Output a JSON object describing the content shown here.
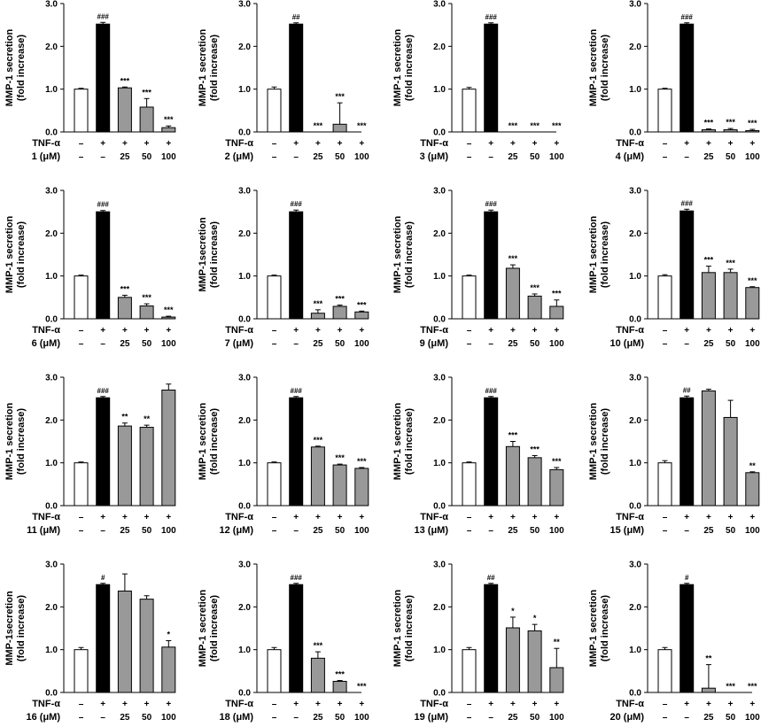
{
  "chart_data": {
    "type": "bar",
    "y_ticks": [
      "0.0",
      "1.0",
      "2.0",
      "3.0"
    ],
    "ylim": [
      0,
      3
    ],
    "row_labels": [
      "TNF-α"
    ],
    "tnf_row": [
      "–",
      "+",
      "+",
      "+",
      "+"
    ],
    "conc_row": [
      "–",
      "–",
      "25",
      "50",
      "100"
    ],
    "bar_colors": [
      "#ffffff",
      "#000000",
      "#999999",
      "#999999",
      "#999999"
    ],
    "panels": [
      {
        "compound_label": "1 (μM)",
        "ylabel": [
          "MMP-1 secretion",
          "(fold increase)"
        ],
        "values": [
          1.0,
          2.52,
          1.03,
          0.58,
          0.1
        ],
        "errors": [
          0.02,
          0.04,
          0.02,
          0.2,
          0.04
        ],
        "annotations": [
          "",
          "###",
          "***",
          "***",
          "***"
        ]
      },
      {
        "compound_label": "2 (μM)",
        "ylabel": [
          "MMP-1 secretion",
          "(fold increase)"
        ],
        "values": [
          1.0,
          2.52,
          0.0,
          0.18,
          0.0
        ],
        "errors": [
          0.05,
          0.03,
          0.0,
          0.5,
          0.0
        ],
        "annotations": [
          "",
          "##",
          "***",
          "***",
          "***"
        ]
      },
      {
        "compound_label": "3 (μM)",
        "ylabel": [
          "MMP-1 secretion",
          "(fold increase)"
        ],
        "values": [
          1.0,
          2.52,
          0.0,
          0.0,
          0.0
        ],
        "errors": [
          0.04,
          0.03,
          0.0,
          0.0,
          0.0
        ],
        "annotations": [
          "",
          "###",
          "***",
          "***",
          "***"
        ]
      },
      {
        "compound_label": "4 (μM)",
        "ylabel": [
          "MMP-1 secretion",
          "(fold increase)"
        ],
        "values": [
          1.0,
          2.52,
          0.05,
          0.05,
          0.03
        ],
        "errors": [
          0.02,
          0.03,
          0.02,
          0.03,
          0.03
        ],
        "annotations": [
          "",
          "###",
          "***",
          "***",
          "***"
        ]
      },
      {
        "compound_label": "6 (μM)",
        "ylabel": [
          "MMP-1 secretion",
          "(fold increase)"
        ],
        "values": [
          1.0,
          2.5,
          0.5,
          0.3,
          0.04
        ],
        "errors": [
          0.02,
          0.03,
          0.05,
          0.05,
          0.02
        ],
        "annotations": [
          "",
          "###",
          "***",
          "***",
          "***"
        ]
      },
      {
        "compound_label": "7 (μM)",
        "ylabel": [
          "MMP-1secretion",
          "(fold increase)"
        ],
        "values": [
          1.0,
          2.5,
          0.13,
          0.29,
          0.16
        ],
        "errors": [
          0.02,
          0.04,
          0.08,
          0.03,
          0.02
        ],
        "annotations": [
          "",
          "###",
          "***",
          "***",
          "***"
        ]
      },
      {
        "compound_label": "9 (μM)",
        "ylabel": [
          "MMP-1 secretion",
          "(fold increase)"
        ],
        "values": [
          1.0,
          2.5,
          1.18,
          0.53,
          0.29
        ],
        "errors": [
          0.02,
          0.04,
          0.08,
          0.05,
          0.15
        ],
        "annotations": [
          "",
          "###",
          "***",
          "***",
          "***"
        ]
      },
      {
        "compound_label": "10 (μM)",
        "ylabel": [
          "MMP-1 secretion",
          "(fold increase)"
        ],
        "values": [
          1.0,
          2.52,
          1.08,
          1.08,
          0.73
        ],
        "errors": [
          0.03,
          0.04,
          0.15,
          0.08,
          0.02
        ],
        "annotations": [
          "",
          "###",
          "***",
          "***",
          "***"
        ]
      },
      {
        "compound_label": "11 (μM)",
        "ylabel": [
          "MMP-1 secretion",
          "(fold increase)"
        ],
        "values": [
          1.0,
          2.52,
          1.86,
          1.83,
          2.7
        ],
        "errors": [
          0.02,
          0.03,
          0.07,
          0.05,
          0.14
        ],
        "annotations": [
          "",
          "###",
          "**",
          "**",
          ""
        ]
      },
      {
        "compound_label": "12 (μM)",
        "ylabel": [
          "MMP-1 secretion",
          "(fold increase)"
        ],
        "values": [
          1.0,
          2.52,
          1.37,
          0.95,
          0.87
        ],
        "errors": [
          0.02,
          0.03,
          0.02,
          0.02,
          0.02
        ],
        "annotations": [
          "",
          "###",
          "***",
          "***",
          "***"
        ]
      },
      {
        "compound_label": "13 (μM)",
        "ylabel": [
          "MMP-1 secretion",
          "(fold increase)"
        ],
        "values": [
          1.0,
          2.52,
          1.38,
          1.12,
          0.84
        ],
        "errors": [
          0.02,
          0.03,
          0.12,
          0.05,
          0.05
        ],
        "annotations": [
          "",
          "###",
          "***",
          "***",
          "***"
        ]
      },
      {
        "compound_label": "15 (μM)",
        "ylabel": [
          "MMP-1 secretion",
          "(fold increase)"
        ],
        "values": [
          1.0,
          2.52,
          2.68,
          2.06,
          0.77
        ],
        "errors": [
          0.05,
          0.04,
          0.04,
          0.4,
          0.02
        ],
        "annotations": [
          "",
          "##",
          "",
          "",
          "**"
        ]
      },
      {
        "compound_label": "16 (μM)",
        "ylabel": [
          "MMP-1secretion",
          "(fold increase)"
        ],
        "values": [
          1.0,
          2.52,
          2.37,
          2.18,
          1.06
        ],
        "errors": [
          0.05,
          0.03,
          0.4,
          0.08,
          0.15
        ],
        "annotations": [
          "",
          "#",
          "",
          "",
          "*"
        ]
      },
      {
        "compound_label": "18 (μM)",
        "ylabel": [
          "MMP-1 secretion",
          "(fold increase)"
        ],
        "values": [
          1.0,
          2.52,
          0.8,
          0.26,
          0.0
        ],
        "errors": [
          0.05,
          0.03,
          0.15,
          0.02,
          0.0
        ],
        "annotations": [
          "",
          "###",
          "***",
          "***",
          "***"
        ]
      },
      {
        "compound_label": "19 (μM)",
        "ylabel": [
          "MMP-1 secretion",
          "(fold increase)"
        ],
        "values": [
          1.0,
          2.52,
          1.51,
          1.44,
          0.58
        ],
        "errors": [
          0.05,
          0.03,
          0.25,
          0.15,
          0.45
        ],
        "annotations": [
          "",
          "##",
          "*",
          "*",
          "**"
        ]
      },
      {
        "compound_label": "20 (μM)",
        "ylabel": [
          "MMP-1 secretion",
          "(fold increase)"
        ],
        "values": [
          1.0,
          2.52,
          0.1,
          0.0,
          0.0
        ],
        "errors": [
          0.05,
          0.03,
          0.55,
          0.0,
          0.0
        ],
        "annotations": [
          "",
          "#",
          "**",
          "***",
          "***"
        ]
      }
    ]
  }
}
